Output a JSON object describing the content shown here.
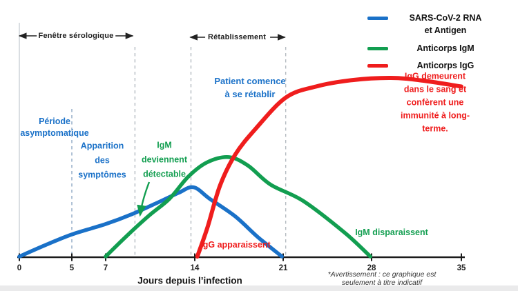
{
  "legend": [
    {
      "label": "SARS-CoV-2 RNA\net Antigen",
      "color": "#1a71c8"
    },
    {
      "label": "Anticorps IgM",
      "color": "#129e50"
    },
    {
      "label": "Anticorps IgG",
      "color": "#ef1d1d"
    }
  ],
  "annotations": {
    "serological_window": "Fenêtre sérologique",
    "recovery": "Rétablissement",
    "asymptomatic": "Période\nasymptomatique",
    "symptom_onset": "Apparition\ndes\nsymptômes",
    "igm_detectable": "IgM\ndeviennent\ndétectable",
    "patient_recovering": "Patient comence\nà se rétablir",
    "igg_persist": "IgG demeurent dans le sang et\nconfèrent une immunité à long-terme.",
    "igg_appear": "IgG apparaissent",
    "igm_disappear": "IgM disparaissent"
  },
  "axis": {
    "xlabel": "Jours depuis l’infection",
    "footnote": "*Avertissement : ce graphique est seulement à titre indicatif"
  },
  "colors": {
    "rna_antigen": "#1a71c8",
    "igm": "#129e50",
    "igg": "#ef1d1d",
    "axis": "#1b1b1b",
    "guide_dashed": "#b3bac0"
  },
  "chart_data": {
    "type": "line",
    "title": "",
    "xlabel": "Jours depuis l’infection",
    "ylabel": "",
    "x_ticks": [
      0,
      5,
      7,
      14,
      21,
      28,
      35
    ],
    "xlim_days": [
      0,
      35
    ],
    "ylim": [
      0,
      1
    ],
    "grid": false,
    "legend_position": "top-right",
    "guide_days": [
      5,
      9.3,
      13.7,
      21.2
    ],
    "regions": [
      {
        "label": "Fenêtre sérologique",
        "from_day": 0,
        "to_day": 9.3
      },
      {
        "label": "Rétablissement",
        "from_day": 13.7,
        "to_day": 21.2
      }
    ],
    "series": [
      {
        "name": "SARS-CoV-2 RNA et Antigen",
        "color": "#1a71c8",
        "points": [
          [
            0,
            0.004
          ],
          [
            2.5,
            0.068
          ],
          [
            5,
            0.127
          ],
          [
            7,
            0.185
          ],
          [
            9,
            0.238
          ],
          [
            11,
            0.302
          ],
          [
            12.7,
            0.358
          ],
          [
            13.9,
            0.39
          ],
          [
            15.2,
            0.325
          ],
          [
            17.2,
            0.228
          ],
          [
            19,
            0.112
          ],
          [
            20.9,
            0.004
          ]
        ]
      },
      {
        "name": "Anticorps IgM",
        "color": "#129e50",
        "points": [
          [
            7,
            0.004
          ],
          [
            8.6,
            0.115
          ],
          [
            10.4,
            0.232
          ],
          [
            12,
            0.325
          ],
          [
            13.5,
            0.45
          ],
          [
            15,
            0.53
          ],
          [
            16.7,
            0.558
          ],
          [
            18.2,
            0.512
          ],
          [
            20,
            0.405
          ],
          [
            22.6,
            0.313
          ],
          [
            25.9,
            0.135
          ],
          [
            27.9,
            0.004
          ]
        ]
      },
      {
        "name": "Anticorps IgG",
        "color": "#ef1d1d",
        "points": [
          [
            14.2,
            0.004
          ],
          [
            15,
            0.165
          ],
          [
            16,
            0.4
          ],
          [
            17.2,
            0.572
          ],
          [
            18.8,
            0.715
          ],
          [
            21.2,
            0.89
          ],
          [
            23.6,
            0.952
          ],
          [
            26.5,
            0.988
          ],
          [
            29.5,
            1.0
          ],
          [
            32,
            0.985
          ],
          [
            35,
            0.952
          ]
        ]
      }
    ]
  }
}
